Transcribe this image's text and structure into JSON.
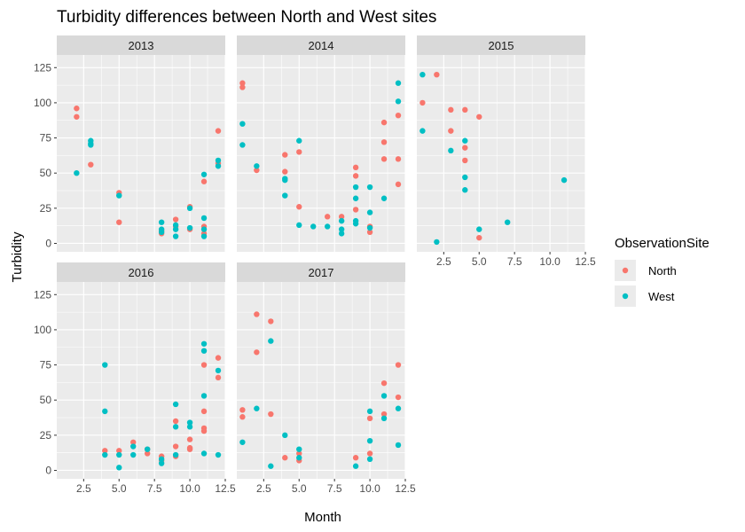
{
  "chart_data": {
    "type": "scatter",
    "title": "Turbidity differences between North and West sites",
    "xlabel": "Month",
    "ylabel": "Turbidity",
    "xlim": [
      0.6,
      12.5
    ],
    "ylim": [
      -6,
      134
    ],
    "x_ticks": [
      2.5,
      5.0,
      7.5,
      10.0,
      12.5
    ],
    "x_tick_labels": [
      "2.5",
      "5.0",
      "7.5",
      "10.0",
      "12.5"
    ],
    "y_ticks": [
      0,
      25,
      50,
      75,
      100,
      125
    ],
    "y_tick_labels": [
      "0",
      "25",
      "50",
      "75",
      "100",
      "125"
    ],
    "legend": {
      "title": "ObservationSite",
      "placement": "right",
      "entries": [
        {
          "name": "North",
          "color": "#F8766D"
        },
        {
          "name": "West",
          "color": "#00BFC4"
        }
      ]
    },
    "panels": [
      {
        "label": "2013",
        "series": [
          {
            "name": "North",
            "points": [
              [
                2,
                96
              ],
              [
                2,
                90
              ],
              [
                3,
                56
              ],
              [
                5,
                36
              ],
              [
                5,
                15
              ],
              [
                8,
                7
              ],
              [
                8,
                9
              ],
              [
                9,
                17
              ],
              [
                9,
                12
              ],
              [
                10,
                26
              ],
              [
                10,
                10
              ],
              [
                11,
                44
              ],
              [
                11,
                12
              ],
              [
                11,
                7
              ],
              [
                12,
                80
              ],
              [
                12,
                57
              ]
            ]
          },
          {
            "name": "West",
            "points": [
              [
                2,
                50
              ],
              [
                3,
                73
              ],
              [
                3,
                71
              ],
              [
                3,
                70
              ],
              [
                5,
                34
              ],
              [
                8,
                15
              ],
              [
                8,
                10
              ],
              [
                8,
                8
              ],
              [
                9,
                13
              ],
              [
                9,
                10
              ],
              [
                9,
                5
              ],
              [
                10,
                25
              ],
              [
                10,
                11
              ],
              [
                11,
                49
              ],
              [
                11,
                18
              ],
              [
                11,
                10
              ],
              [
                11,
                5
              ],
              [
                12,
                59
              ],
              [
                12,
                55
              ]
            ]
          }
        ]
      },
      {
        "label": "2014",
        "series": [
          {
            "name": "North",
            "points": [
              [
                1,
                114
              ],
              [
                1,
                111
              ],
              [
                2,
                52
              ],
              [
                4,
                63
              ],
              [
                4,
                51
              ],
              [
                5,
                65
              ],
              [
                5,
                26
              ],
              [
                7,
                19
              ],
              [
                8,
                19
              ],
              [
                9,
                54
              ],
              [
                9,
                48
              ],
              [
                9,
                24
              ],
              [
                10,
                12
              ],
              [
                10,
                8
              ],
              [
                11,
                86
              ],
              [
                11,
                72
              ],
              [
                11,
                60
              ],
              [
                12,
                91
              ],
              [
                12,
                60
              ],
              [
                12,
                42
              ]
            ]
          },
          {
            "name": "West",
            "points": [
              [
                1,
                85
              ],
              [
                1,
                70
              ],
              [
                2,
                55
              ],
              [
                4,
                46
              ],
              [
                4,
                45
              ],
              [
                4,
                34
              ],
              [
                5,
                73
              ],
              [
                5,
                13
              ],
              [
                6,
                12
              ],
              [
                7,
                12
              ],
              [
                8,
                16
              ],
              [
                8,
                10
              ],
              [
                8,
                7
              ],
              [
                9,
                40
              ],
              [
                9,
                32
              ],
              [
                9,
                16
              ],
              [
                9,
                14
              ],
              [
                10,
                40
              ],
              [
                10,
                22
              ],
              [
                10,
                11
              ],
              [
                11,
                32
              ],
              [
                12,
                114
              ],
              [
                12,
                101
              ]
            ]
          }
        ]
      },
      {
        "label": "2015",
        "series": [
          {
            "name": "North",
            "points": [
              [
                1,
                100
              ],
              [
                2,
                120
              ],
              [
                3,
                95
              ],
              [
                3,
                80
              ],
              [
                4,
                95
              ],
              [
                4,
                68
              ],
              [
                4,
                59
              ],
              [
                5,
                90
              ],
              [
                5,
                4
              ]
            ]
          },
          {
            "name": "West",
            "points": [
              [
                1,
                120
              ],
              [
                1,
                80
              ],
              [
                2,
                1
              ],
              [
                3,
                66
              ],
              [
                4,
                73
              ],
              [
                4,
                47
              ],
              [
                4,
                38
              ],
              [
                5,
                10
              ],
              [
                7,
                15
              ],
              [
                11,
                45
              ]
            ]
          }
        ]
      },
      {
        "label": "2016",
        "series": [
          {
            "name": "North",
            "points": [
              [
                4,
                14
              ],
              [
                5,
                14
              ],
              [
                6,
                20
              ],
              [
                7,
                15
              ],
              [
                7,
                12
              ],
              [
                8,
                10
              ],
              [
                8,
                7
              ],
              [
                9,
                35
              ],
              [
                9,
                17
              ],
              [
                9,
                10
              ],
              [
                10,
                22
              ],
              [
                10,
                16
              ],
              [
                10,
                15
              ],
              [
                11,
                75
              ],
              [
                11,
                42
              ],
              [
                11,
                30
              ],
              [
                11,
                28
              ],
              [
                12,
                80
              ],
              [
                12,
                66
              ]
            ]
          },
          {
            "name": "West",
            "points": [
              [
                4,
                75
              ],
              [
                4,
                42
              ],
              [
                4,
                11
              ],
              [
                5,
                11
              ],
              [
                5,
                2
              ],
              [
                6,
                17
              ],
              [
                6,
                11
              ],
              [
                7,
                15
              ],
              [
                8,
                8
              ],
              [
                8,
                5
              ],
              [
                9,
                47
              ],
              [
                9,
                31
              ],
              [
                9,
                11
              ],
              [
                10,
                34
              ],
              [
                10,
                31
              ],
              [
                11,
                90
              ],
              [
                11,
                85
              ],
              [
                11,
                53
              ],
              [
                11,
                12
              ],
              [
                12,
                71
              ],
              [
                12,
                11
              ]
            ]
          }
        ]
      },
      {
        "label": "2017",
        "series": [
          {
            "name": "North",
            "points": [
              [
                1,
                43
              ],
              [
                1,
                38
              ],
              [
                2,
                111
              ],
              [
                2,
                84
              ],
              [
                3,
                106
              ],
              [
                3,
                40
              ],
              [
                4,
                9
              ],
              [
                5,
                12
              ],
              [
                5,
                7
              ],
              [
                9,
                9
              ],
              [
                10,
                37
              ],
              [
                10,
                12
              ],
              [
                11,
                62
              ],
              [
                11,
                40
              ],
              [
                12,
                75
              ],
              [
                12,
                52
              ]
            ]
          },
          {
            "name": "West",
            "points": [
              [
                1,
                20
              ],
              [
                2,
                44
              ],
              [
                3,
                92
              ],
              [
                3,
                3
              ],
              [
                4,
                25
              ],
              [
                5,
                15
              ],
              [
                5,
                9
              ],
              [
                9,
                3
              ],
              [
                10,
                42
              ],
              [
                10,
                21
              ],
              [
                10,
                8
              ],
              [
                11,
                53
              ],
              [
                11,
                37
              ],
              [
                12,
                44
              ],
              [
                12,
                18
              ]
            ]
          }
        ]
      }
    ]
  }
}
